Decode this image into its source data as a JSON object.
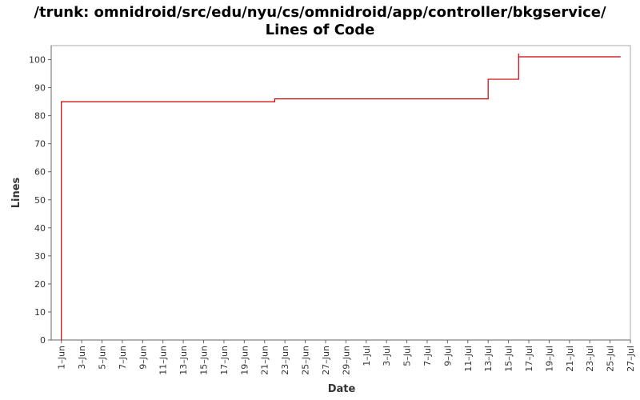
{
  "chart_data": {
    "type": "line",
    "title": "/trunk: omnidroid/src/edu/nyu/cs/omnidroid/app/controller/bkgservice/",
    "subtitle": "Lines of Code",
    "xlabel": "Date",
    "ylabel": "Lines",
    "ylim": [
      0,
      105
    ],
    "xlim": [
      "2008-05-31",
      "2008-07-27"
    ],
    "yticks": [
      0,
      10,
      20,
      30,
      40,
      50,
      60,
      70,
      80,
      90,
      100
    ],
    "xtick_labels": [
      "1–Jun",
      "3–Jun",
      "5–Jun",
      "7–Jun",
      "9–Jun",
      "11–Jun",
      "13–Jun",
      "15–Jun",
      "17–Jun",
      "19–Jun",
      "21–Jun",
      "23–Jun",
      "25–Jun",
      "27–Jun",
      "29–Jun",
      "1–Jul",
      "3–Jul",
      "5–Jul",
      "7–Jul",
      "9–Jul",
      "11–Jul",
      "13–Jul",
      "15–Jul",
      "17–Jul",
      "19–Jul",
      "21–Jul",
      "23–Jul",
      "25–Jul",
      "27–Jul"
    ],
    "xtick_dates": [
      "2008-06-01",
      "2008-06-03",
      "2008-06-05",
      "2008-06-07",
      "2008-06-09",
      "2008-06-11",
      "2008-06-13",
      "2008-06-15",
      "2008-06-17",
      "2008-06-19",
      "2008-06-21",
      "2008-06-23",
      "2008-06-25",
      "2008-06-27",
      "2008-06-29",
      "2008-07-01",
      "2008-07-03",
      "2008-07-05",
      "2008-07-07",
      "2008-07-09",
      "2008-07-11",
      "2008-07-13",
      "2008-07-15",
      "2008-07-17",
      "2008-07-19",
      "2008-07-21",
      "2008-07-23",
      "2008-07-25",
      "2008-07-27"
    ],
    "grid": false,
    "step": true,
    "series": [
      {
        "color": "#cc0000",
        "points": [
          {
            "x": "2008-06-01",
            "y": 0
          },
          {
            "x": "2008-06-01",
            "y": 85
          },
          {
            "x": "2008-06-22",
            "y": 86
          },
          {
            "x": "2008-07-13",
            "y": 93
          },
          {
            "x": "2008-07-16",
            "y": 102
          },
          {
            "x": "2008-07-16",
            "y": 101
          },
          {
            "x": "2008-07-26",
            "y": 101
          }
        ]
      }
    ]
  }
}
